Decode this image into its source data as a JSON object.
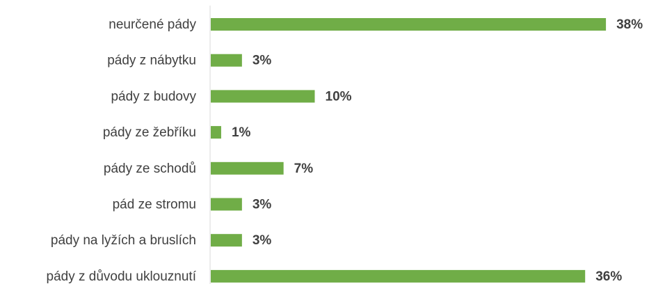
{
  "chart_data": {
    "type": "bar",
    "orientation": "horizontal",
    "categories": [
      "neurčené pády",
      "pády z nábytku",
      "pády z budovy",
      "pády ze žebříku",
      "pády ze schodů",
      "pád ze stromu",
      "pády na lyžích a bruslích",
      "pády z důvodu uklouznutí"
    ],
    "values": [
      38,
      3,
      10,
      1,
      7,
      3,
      3,
      36
    ],
    "value_labels": [
      "38%",
      "3%",
      "10%",
      "1%",
      "7%",
      "3%",
      "3%",
      "36%"
    ],
    "color": "#70ad47"
  }
}
